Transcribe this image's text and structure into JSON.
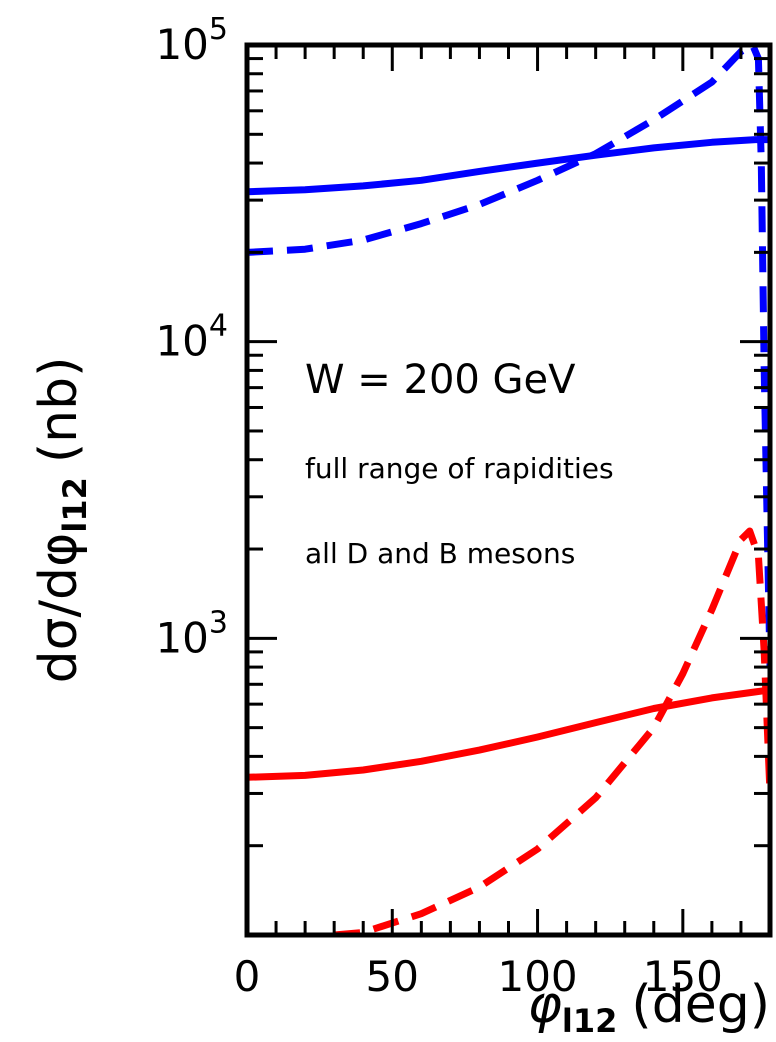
{
  "chart_data": {
    "type": "line",
    "title": "",
    "xlabel": "φ",
    "xlabel_sub": "l12",
    "xlabel_unit": "(deg)",
    "ylabel_prefix": "dσ/dφ",
    "ylabel_sub": "l12",
    "ylabel_unit": "(nb)",
    "xlim": [
      0,
      180
    ],
    "ylim": [
      100,
      100000
    ],
    "yscale": "log",
    "grid": false,
    "legend": "none",
    "x_ticks": [
      {
        "value": 0,
        "label": "0"
      },
      {
        "value": 50,
        "label": "50"
      },
      {
        "value": 100,
        "label": "100"
      },
      {
        "value": 150,
        "label": "150"
      }
    ],
    "y_ticks": [
      {
        "value": 1000,
        "base": "10",
        "exp": "3"
      },
      {
        "value": 10000,
        "base": "10",
        "exp": "4"
      },
      {
        "value": 100000,
        "base": "10",
        "exp": "5"
      }
    ],
    "annotations": [
      {
        "text": "W = 200 GeV",
        "size": "large"
      },
      {
        "text": "full range of rapidities",
        "size": "small"
      },
      {
        "text": "all D and B mesons",
        "size": "small"
      }
    ],
    "series": [
      {
        "color": "#0000ff",
        "style": "solid",
        "x": [
          0,
          20,
          40,
          60,
          80,
          100,
          120,
          140,
          160,
          175,
          178,
          180
        ],
        "y": [
          32000,
          32500,
          33500,
          35000,
          37500,
          40000,
          42500,
          45000,
          47000,
          48000,
          48000,
          48000
        ]
      },
      {
        "color": "#0000ff",
        "style": "dashed",
        "x": [
          0,
          20,
          40,
          60,
          80,
          100,
          120,
          140,
          160,
          170,
          174,
          176,
          177,
          178,
          180
        ],
        "y": [
          20000,
          20500,
          22000,
          25000,
          29000,
          35000,
          43000,
          56000,
          75000,
          95000,
          100000,
          90000,
          40000,
          8000,
          800
        ]
      },
      {
        "color": "#ff0000",
        "style": "solid",
        "x": [
          0,
          20,
          40,
          60,
          80,
          100,
          120,
          140,
          160,
          175,
          180
        ],
        "y": [
          340,
          345,
          360,
          385,
          420,
          465,
          520,
          580,
          630,
          660,
          670
        ]
      },
      {
        "color": "#ff0000",
        "style": "dashed",
        "x": [
          30,
          40,
          60,
          80,
          100,
          120,
          140,
          150,
          160,
          170,
          173,
          176,
          178,
          180
        ],
        "y": [
          100,
          102,
          118,
          145,
          195,
          290,
          500,
          760,
          1250,
          2150,
          2300,
          1900,
          900,
          300
        ]
      }
    ]
  }
}
